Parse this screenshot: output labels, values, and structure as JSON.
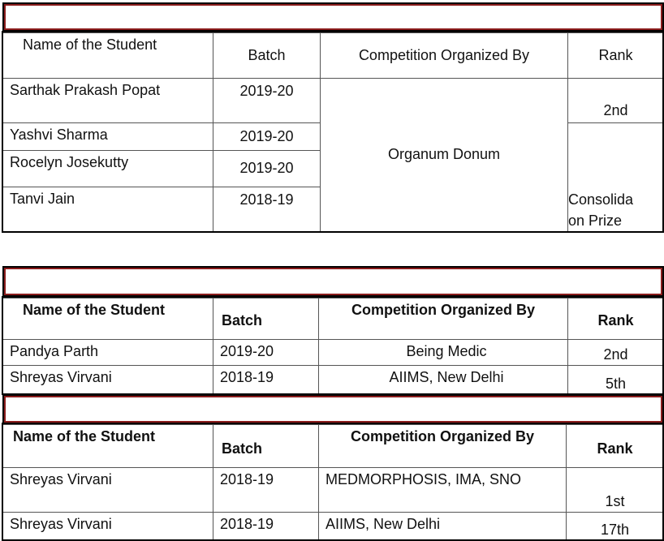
{
  "sections": [
    {
      "headers": [
        "Name of the Student",
        "Batch",
        "Competition Organized By",
        "Rank"
      ],
      "rows": [
        [
          "Sarthak Prakash Popat",
          "2019-20"
        ],
        [
          "Yashvi Sharma",
          "2019-20"
        ],
        [
          "Rocelyn Josekutty",
          "2019-20"
        ],
        [
          "Tanvi Jain",
          "2018-19"
        ]
      ],
      "organizer": "Organum Donum",
      "ranks": [
        "2nd",
        "Consolida on Prize"
      ]
    },
    {
      "headers": [
        "Name of the Student",
        "Batch",
        "Competition Organized By",
        "Rank"
      ],
      "rows": [
        [
          "Pandya Parth",
          "2019-20",
          "Being Medic",
          "2nd"
        ],
        [
          "Shreyas Virvani",
          "2018-19",
          "AIIMS, New Delhi",
          "5th"
        ]
      ]
    },
    {
      "headers": [
        "Name of the Student",
        "Batch",
        "Competition Organized By",
        "Rank"
      ],
      "rows": [
        [
          "Shreyas Virvani",
          "2018-19",
          "MEDMORPHOSIS, IMA, SNO",
          "1st"
        ],
        [
          "Shreyas Virvani",
          "2018-19",
          "AIIMS, New Delhi",
          "17th"
        ]
      ]
    }
  ]
}
